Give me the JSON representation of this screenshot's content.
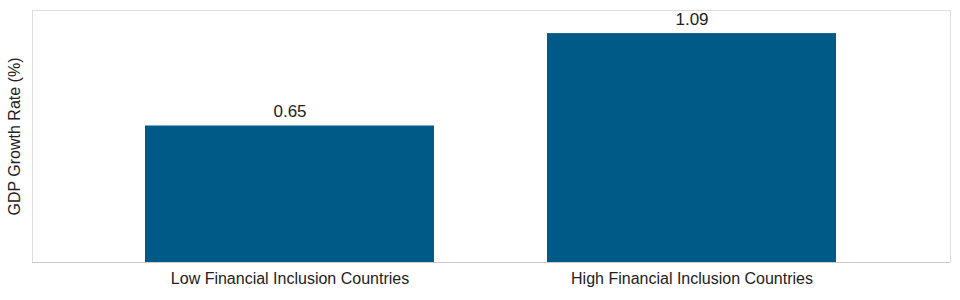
{
  "chart_data": {
    "type": "bar",
    "y_label": "GDP Growth Rate (%)",
    "categories": [
      "Low Financial Inclusion Countries",
      "High Financial Inclusion Countries"
    ],
    "values": [
      0.65,
      1.09
    ],
    "color": "#005a87",
    "ylim": [
      0,
      1.2
    ],
    "yticks": [],
    "data_labels": true,
    "tick_labels": "x"
  }
}
